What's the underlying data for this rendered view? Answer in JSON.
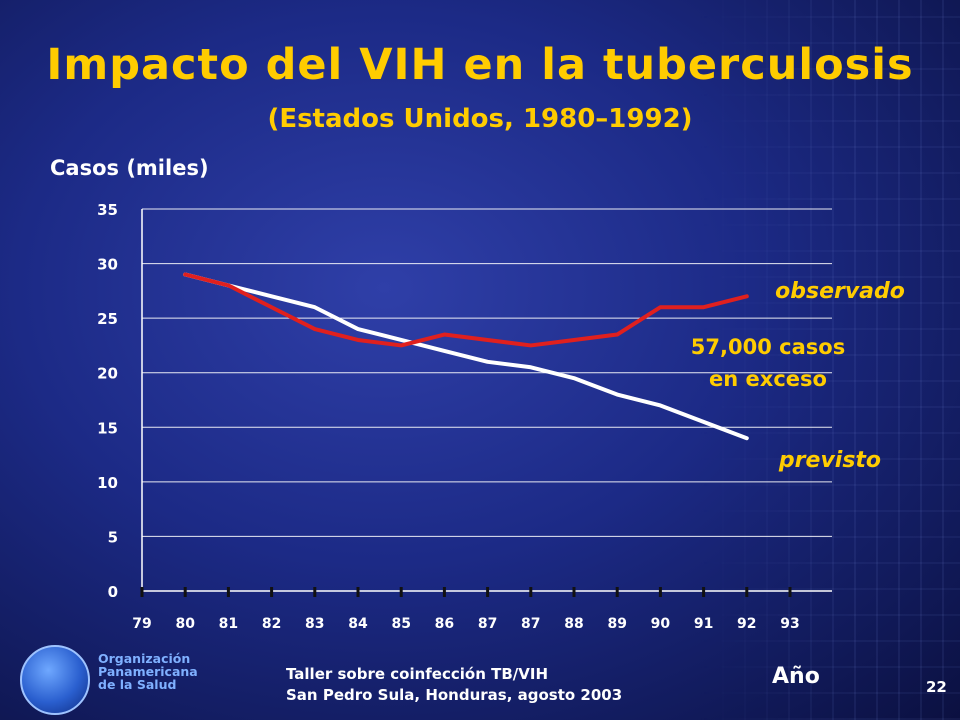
{
  "slide": {
    "title": "Impacto del VIH en la tuberculosis",
    "subtitle": "(Estados Unidos, 1980–1992)",
    "footer_line1": "Taller sobre coinfección TB/VIH",
    "footer_line2": "San Pedro Sula, Honduras, agosto 2003",
    "org_line1": "Organización",
    "org_line2": "Panamericana",
    "org_line3": "de la Salud",
    "slide_number": "22"
  },
  "chart_data": {
    "type": "line",
    "ylabel": "Casos (miles)",
    "xlabel": "Año",
    "ylim": [
      0,
      35
    ],
    "yticks": [
      "0",
      "5",
      "10",
      "15",
      "20",
      "25",
      "30",
      "35"
    ],
    "xticks": [
      "79",
      "80",
      "81",
      "82",
      "83",
      "84",
      "85",
      "86",
      "87",
      "87",
      "88",
      "89",
      "90",
      "91",
      "92",
      "93"
    ],
    "grid": true,
    "series": [
      {
        "name": "observado",
        "color": "#e0201e",
        "x_index": [
          1,
          2,
          3,
          4,
          5,
          6,
          7,
          8,
          9,
          10,
          11,
          12,
          13,
          14
        ],
        "values": [
          29,
          28,
          26,
          24,
          23,
          22.5,
          23.5,
          23,
          22.5,
          23,
          23.5,
          26,
          26,
          27
        ]
      },
      {
        "name": "previsto",
        "color": "#ffffff",
        "x_index": [
          1,
          2,
          3,
          4,
          5,
          6,
          7,
          8,
          9,
          10,
          11,
          12,
          13,
          14
        ],
        "values": [
          29,
          28,
          27,
          26,
          24,
          23,
          22,
          21,
          20.5,
          19.5,
          18,
          17,
          15.5,
          14
        ]
      }
    ],
    "annotations": [
      {
        "text": "observado",
        "color": "#ffcc00"
      },
      {
        "text": "57,000 casos",
        "color": "#ffcc00"
      },
      {
        "text": "en exceso",
        "color": "#ffcc00"
      },
      {
        "text": "previsto",
        "color": "#ffcc00"
      }
    ]
  }
}
